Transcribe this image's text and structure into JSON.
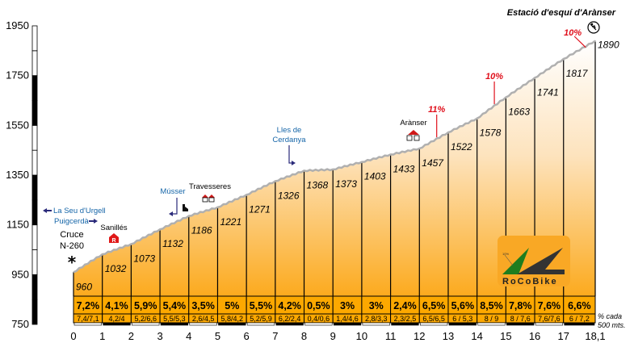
{
  "chart_data": {
    "type": "area",
    "title": "Estació d'esquí d'Arànser",
    "xlabel": "",
    "ylabel": "",
    "ylim": [
      750,
      1950
    ],
    "xlim": [
      0,
      18.1
    ],
    "yticks": [
      950,
      1150,
      1350,
      1550,
      1750,
      1950,
      750
    ],
    "ytick_labels": [
      "950",
      "1150",
      "1350",
      "1550",
      "1750",
      "1950",
      "750"
    ],
    "x": [
      0,
      1,
      2,
      3,
      4,
      5,
      6,
      7,
      8,
      9,
      10,
      11,
      12,
      13,
      14,
      15,
      16,
      17,
      18.1
    ],
    "xtick_labels": [
      "0",
      "1",
      "2",
      "3",
      "4",
      "5",
      "6",
      "7",
      "8",
      "9",
      "10",
      "11",
      "12",
      "13",
      "14",
      "15",
      "16",
      "17",
      "18,1"
    ],
    "elevations": [
      960,
      1032,
      1073,
      1132,
      1186,
      1221,
      1271,
      1326,
      1368,
      1373,
      1403,
      1433,
      1457,
      1522,
      1578,
      1663,
      1741,
      1817,
      1890
    ],
    "elevation_labels": [
      "960",
      "1032",
      "1073",
      "1132",
      "1186",
      "1221",
      "1271",
      "1326",
      "1368",
      "1373",
      "1403",
      "1433",
      "1457",
      "1522",
      "1578",
      "1663",
      "1741",
      "1817",
      "1890"
    ],
    "segment_grades": [
      "7,2%",
      "4,1%",
      "5,9%",
      "5,4%",
      "3,5%",
      "5%",
      "5,5%",
      "4,2%",
      "0,5%",
      "3%",
      "3%",
      "2,4%",
      "6,5%",
      "5,6%",
      "8,5%",
      "7,8%",
      "7,6%",
      "6,6%"
    ],
    "segment_half_grades": [
      "7,4/7,1",
      "4,2/4",
      "5,2/6,6",
      "5,5/5,3",
      "2,6/4,5",
      "5,8/4,2",
      "5,2/5,9",
      "6,2/2,4",
      "0,4/0,6",
      "1,4/4,6",
      "2,8/3,3",
      "2,3/2,5",
      "6,5/6,5",
      "6 / 5,3",
      "8 / 9",
      "8 / 7,6",
      "7,6/7,6",
      "6 / 7,2"
    ],
    "max_grade_markers": [
      {
        "label": "11%",
        "km": 12.6
      },
      {
        "label": "10%",
        "km": 14.6
      },
      {
        "label": "10%",
        "km": 17.6
      }
    ],
    "grid": false,
    "legend": "none",
    "note": [
      "% cada",
      "500 mts."
    ]
  },
  "annotations": {
    "start_label": [
      "Cruce",
      "N-260"
    ],
    "direction_left": "La Seu d'Urgell",
    "direction_right": "Puigcerdà",
    "places": {
      "sanilles": "Sanillés",
      "musser": "Músser",
      "travesseres": "Travesseres",
      "lles": [
        "Lles de",
        "Cerdanya"
      ],
      "aranser": "Arànser"
    }
  },
  "logo": {
    "text": "RoCoBike",
    "bg": "#f9a825"
  },
  "colors": {
    "fill_top": "#fff8ef",
    "fill_bottom": "#fcae22",
    "profile_line": "#b0b0b0",
    "grade_band": "#fca800",
    "peak": "#e0101c",
    "blue": "#1565a8"
  }
}
